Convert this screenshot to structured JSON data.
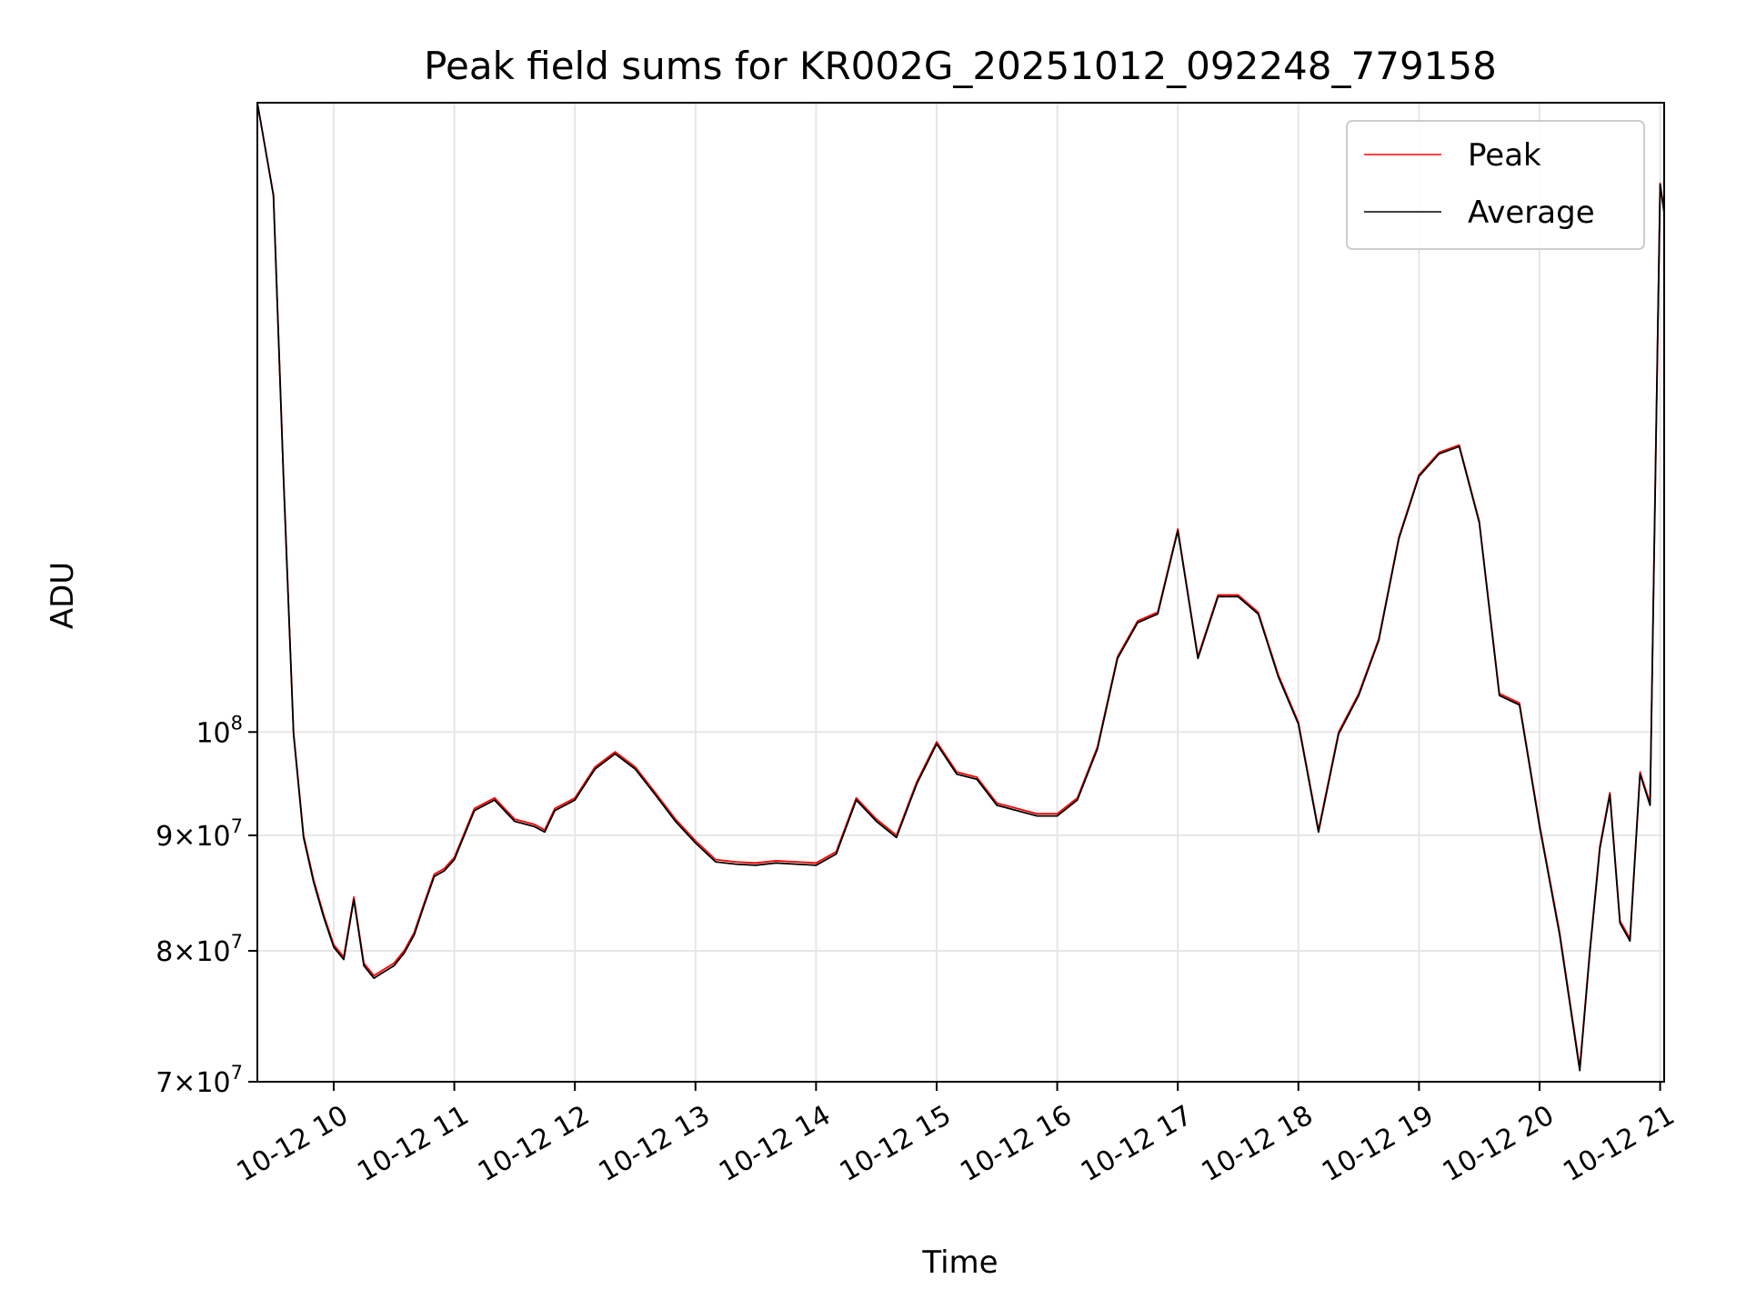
{
  "chart_data": {
    "type": "line",
    "title": "Peak field sums for KR002G_20251012_092248_779158",
    "xlabel": "Time",
    "ylabel": "ADU",
    "yscale": "log",
    "ylim": [
      70000000,
      190000000
    ],
    "xlim": [
      "2025-10-12 09:22",
      "2025-10-12 21:02"
    ],
    "x_tick_labels": [
      "10-12 10",
      "10-12 11",
      "10-12 12",
      "10-12 13",
      "10-12 14",
      "10-12 15",
      "10-12 16",
      "10-12 17",
      "10-12 18",
      "10-12 19",
      "10-12 20",
      "10-12 21"
    ],
    "y_ticks": [
      {
        "value": 70000000,
        "mantissa": "7",
        "base": "10",
        "exponent": "7"
      },
      {
        "value": 80000000,
        "mantissa": "8",
        "base": "10",
        "exponent": "7"
      },
      {
        "value": 90000000,
        "mantissa": "9",
        "base": "10",
        "exponent": "7"
      },
      {
        "value": 100000000,
        "mantissa": "",
        "base": "10",
        "exponent": "8"
      }
    ],
    "grid": true,
    "legend_position": "top-right",
    "x": [
      "09:22",
      "09:30",
      "09:35",
      "09:40",
      "09:45",
      "09:50",
      "09:55",
      "10:00",
      "10:05",
      "10:10",
      "10:15",
      "10:20",
      "10:25",
      "10:30",
      "10:35",
      "10:40",
      "10:45",
      "10:50",
      "10:55",
      "11:00",
      "11:10",
      "11:20",
      "11:30",
      "11:40",
      "11:45",
      "11:50",
      "12:00",
      "12:10",
      "12:20",
      "12:30",
      "12:40",
      "12:50",
      "13:00",
      "13:10",
      "13:20",
      "13:30",
      "13:40",
      "13:50",
      "14:00",
      "14:10",
      "14:20",
      "14:30",
      "14:40",
      "14:50",
      "15:00",
      "15:10",
      "15:20",
      "15:30",
      "15:40",
      "15:50",
      "16:00",
      "16:10",
      "16:20",
      "16:30",
      "16:40",
      "16:50",
      "17:00",
      "17:10",
      "17:20",
      "17:30",
      "17:40",
      "17:50",
      "18:00",
      "18:10",
      "18:20",
      "18:30",
      "18:40",
      "18:50",
      "19:00",
      "19:10",
      "19:20",
      "19:30",
      "19:40",
      "19:50",
      "20:00",
      "20:10",
      "20:20",
      "20:25",
      "20:30",
      "20:35",
      "20:40",
      "20:45",
      "20:50",
      "20:55",
      "21:00",
      "21:02"
    ],
    "series": [
      {
        "name": "Peak",
        "color": "#ff0000",
        "values": [
          190000000,
          173000000,
          130000000,
          100000000,
          90000000,
          86000000,
          83000000,
          80500000,
          79500000,
          84500000,
          79000000,
          78000000,
          78500000,
          79000000,
          80000000,
          81500000,
          84000000,
          86500000,
          87000000,
          88000000,
          92500000,
          93500000,
          91500000,
          91000000,
          90500000,
          92500000,
          93500000,
          96500000,
          98000000,
          96500000,
          94000000,
          91500000,
          89500000,
          87800000,
          87600000,
          87500000,
          87700000,
          87600000,
          87500000,
          88500000,
          93500000,
          91500000,
          90000000,
          95000000,
          99000000,
          96000000,
          95500000,
          93000000,
          92500000,
          92000000,
          92000000,
          93500000,
          98500000,
          108000000,
          112000000,
          113000000,
          123000000,
          108000000,
          115000000,
          115000000,
          113000000,
          106000000,
          101000000,
          90500000,
          100000000,
          104000000,
          110000000,
          122000000,
          130000000,
          133000000,
          134000000,
          124000000,
          104000000,
          103000000,
          91000000,
          81500000,
          71000000,
          80000000,
          89000000,
          94000000,
          82500000,
          81000000,
          96000000,
          93000000,
          175000000,
          170000000
        ]
      },
      {
        "name": "Average",
        "color": "#000000",
        "values": [
          190000000,
          172800000,
          129800000,
          99800000,
          89800000,
          85800000,
          82800000,
          80300000,
          79300000,
          84300000,
          78800000,
          77800000,
          78300000,
          78800000,
          79800000,
          81300000,
          83800000,
          86300000,
          86800000,
          87800000,
          92300000,
          93300000,
          91300000,
          90800000,
          90300000,
          92300000,
          93300000,
          96300000,
          97800000,
          96300000,
          93800000,
          91300000,
          89300000,
          87600000,
          87400000,
          87300000,
          87500000,
          87400000,
          87300000,
          88300000,
          93300000,
          91300000,
          89800000,
          94800000,
          98800000,
          95800000,
          95300000,
          92800000,
          92300000,
          91800000,
          91800000,
          93300000,
          98300000,
          107800000,
          111800000,
          112800000,
          122800000,
          107800000,
          114800000,
          114800000,
          112800000,
          105800000,
          100800000,
          90300000,
          99800000,
          103800000,
          109800000,
          121800000,
          129800000,
          132800000,
          133800000,
          123800000,
          103800000,
          102800000,
          90800000,
          81300000,
          70800000,
          79800000,
          88800000,
          93800000,
          82300000,
          80800000,
          95800000,
          92800000,
          174800000,
          169800000
        ]
      }
    ]
  }
}
